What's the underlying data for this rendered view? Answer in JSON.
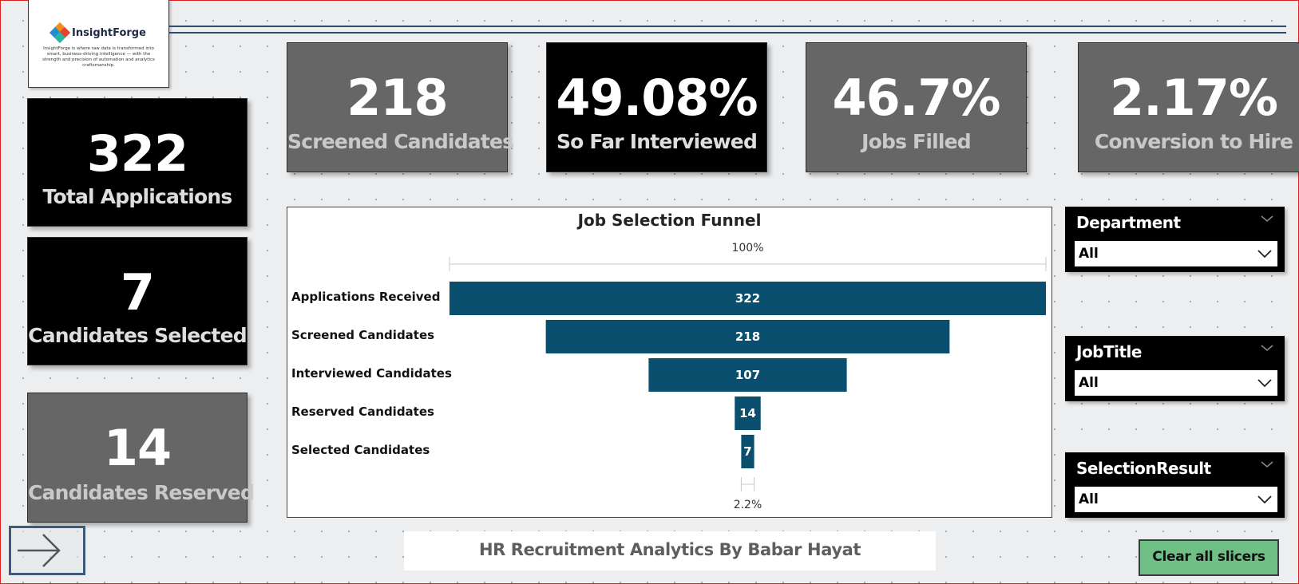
{
  "logo": {
    "name": "InsightForge",
    "tagline": "InsightForge is where raw data is transformed into smart, business-driving intelligence — with the strength and precision of automation and analytics craftsmanship."
  },
  "kpis": {
    "total_applications": {
      "value": "322",
      "label": "Total Applications"
    },
    "candidates_selected": {
      "value": "7",
      "label": "Candidates Selected"
    },
    "candidates_reserved": {
      "value": "14",
      "label": "Candidates Reserved"
    },
    "screened_candidates": {
      "value": "218",
      "label": "Screened Candidates"
    },
    "so_far_interviewed": {
      "value": "49.08%",
      "label": "So Far Interviewed"
    },
    "jobs_filled": {
      "value": "46.7%",
      "label": "Jobs Filled"
    },
    "conversion_to_hire": {
      "value": "2.17%",
      "label": "Conversion to Hire"
    }
  },
  "chart_data": {
    "type": "bar",
    "orientation": "funnel",
    "title": "Job Selection Funnel",
    "categories": [
      "Applications Received",
      "Screened Candidates",
      "Interviewed Candidates",
      "Reserved Candidates",
      "Selected Candidates"
    ],
    "values": [
      322,
      218,
      107,
      14,
      7
    ],
    "top_percent_label": "100%",
    "bottom_percent_label": "2.2%",
    "bar_color": "#0b4f6e"
  },
  "slicers": {
    "department": {
      "title": "Department",
      "value": "All"
    },
    "job_title": {
      "title": "JobTitle",
      "value": "All"
    },
    "selection_result": {
      "title": "SelectionResult",
      "value": "All"
    }
  },
  "footer": {
    "text": "HR Recruitment Analytics By Babar Hayat"
  },
  "buttons": {
    "clear_slicers": "Clear all slicers"
  },
  "icons": {
    "nav": "arrow-right-icon",
    "slicer_caret": "chevron-down-icon"
  },
  "colors": {
    "kpi_black": "#000000",
    "kpi_grey": "#666666",
    "clear_button": "#6fbf86",
    "accent_line": "#2d4a6b"
  }
}
